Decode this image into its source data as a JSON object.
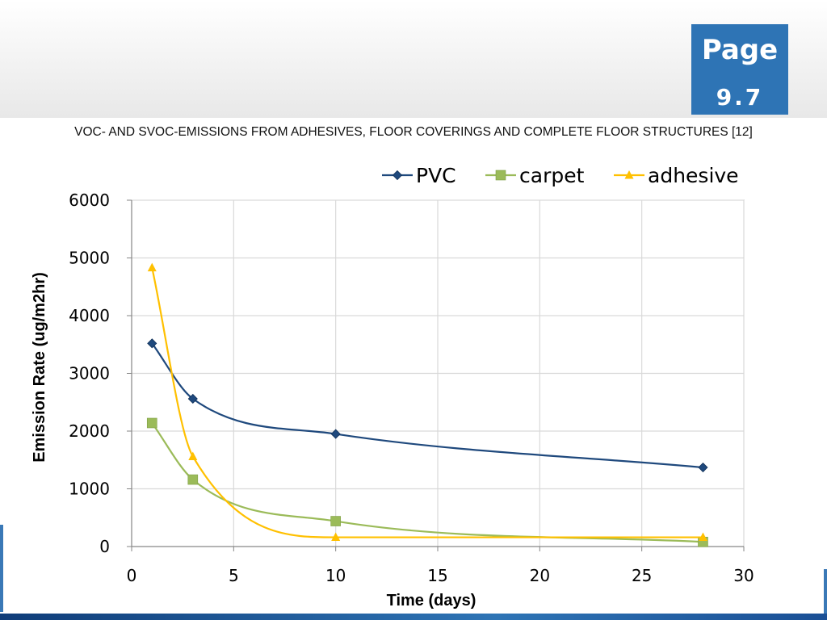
{
  "page_badge": {
    "word": "Page",
    "number": "9.7"
  },
  "colors": {
    "badge": "#2e74b5",
    "pvc": "#1f497d",
    "carpet": "#9bbb59",
    "adhesive": "#ffc000",
    "grid": "#d9d9d9",
    "axis": "#868686"
  },
  "chart_data": {
    "type": "line",
    "title": "VOC- AND SVOC-EMISSIONS FROM ADHESIVES, FLOOR COVERINGS AND COMPLETE FLOOR STRUCTURES [12]",
    "xlabel": "Time (days)",
    "ylabel": "Emission Rate (ug/m2hr)",
    "xlim": [
      0,
      30
    ],
    "ylim": [
      0,
      6000
    ],
    "xticks": [
      0,
      5,
      10,
      15,
      20,
      25,
      30
    ],
    "yticks": [
      0,
      1000,
      2000,
      3000,
      4000,
      5000,
      6000
    ],
    "grid": true,
    "legend_position": "top-right",
    "smooth": true,
    "series": [
      {
        "name": "PVC",
        "marker": "diamond",
        "color": "#1f497d",
        "x": [
          1,
          3,
          10,
          28
        ],
        "y": [
          3520,
          2560,
          1950,
          1370
        ]
      },
      {
        "name": "carpet",
        "marker": "square",
        "color": "#9bbb59",
        "x": [
          1,
          3,
          10,
          28
        ],
        "y": [
          2140,
          1160,
          440,
          80
        ]
      },
      {
        "name": "adhesive",
        "marker": "triangle",
        "color": "#ffc000",
        "x": [
          1,
          3,
          10,
          28
        ],
        "y": [
          4830,
          1560,
          160,
          160
        ]
      }
    ]
  }
}
